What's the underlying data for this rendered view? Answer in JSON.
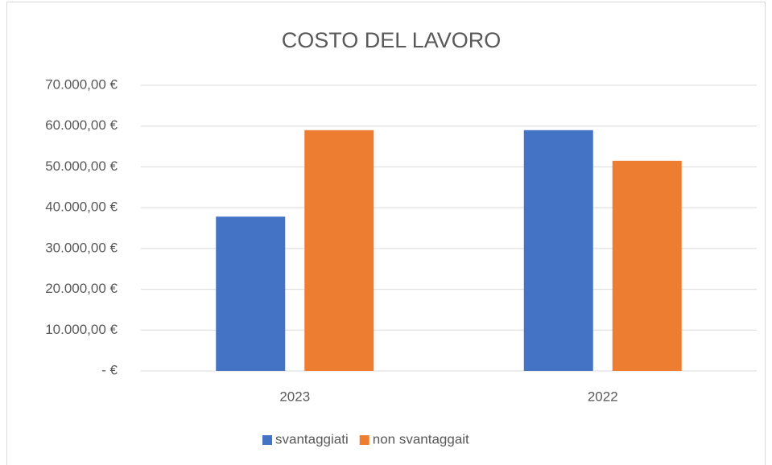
{
  "chart_data": {
    "type": "bar",
    "title": "COSTO DEL LAVORO",
    "categories": [
      "2023",
      "2022"
    ],
    "series": [
      {
        "name": "svantaggiati",
        "color": "#4472c4",
        "values": [
          37800,
          59000
        ]
      },
      {
        "name": "non svantaggait",
        "color": "#ed7d31",
        "values": [
          59000,
          51500
        ]
      }
    ],
    "ylim": [
      0,
      70000
    ],
    "yticks": [
      {
        "value": 0,
        "label": "- €"
      },
      {
        "value": 10000,
        "label": "10.000,00 €"
      },
      {
        "value": 20000,
        "label": "20.000,00 €"
      },
      {
        "value": 30000,
        "label": "30.000,00 €"
      },
      {
        "value": 40000,
        "label": "40.000,00 €"
      },
      {
        "value": 50000,
        "label": "50.000,00 €"
      },
      {
        "value": 60000,
        "label": "60.000,00 €"
      },
      {
        "value": 70000,
        "label": "70.000,00 €"
      }
    ],
    "grid": true,
    "legend": "bottom"
  }
}
